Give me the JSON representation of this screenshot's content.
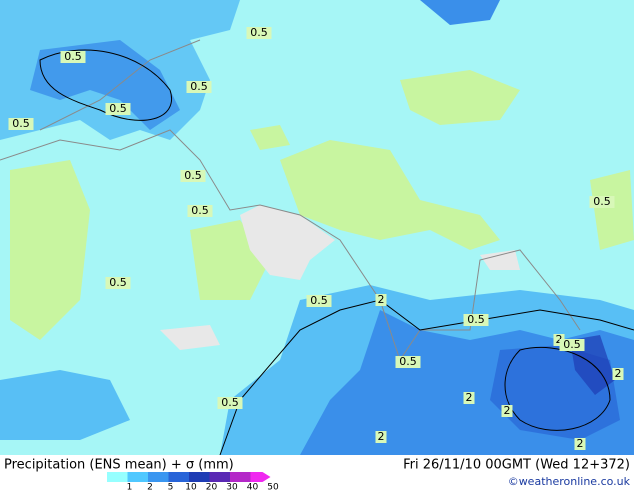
{
  "title": "Precipitation (ENS mean) + σ (mm)",
  "date": "Fri 26/11/10 00GMT  (Wed 12+372)",
  "credit": "©weatheronline.co.uk",
  "legend": {
    "labels": [
      1,
      2,
      5,
      10,
      20,
      30,
      40,
      50
    ],
    "colors": [
      "#96ffff",
      "#50c8ff",
      "#3a96f0",
      "#2864d8",
      "#1e3cb4",
      "#5a28b4",
      "#b428c8",
      "#f028f0"
    ]
  },
  "contour_labels": [
    0.5,
    0.5,
    0.5,
    0.5,
    0.5,
    0.5,
    0.5,
    0.5,
    0.5,
    0.5,
    2,
    0.5,
    2,
    0.5,
    0.5,
    2,
    0.5,
    2,
    2,
    2,
    2
  ]
}
